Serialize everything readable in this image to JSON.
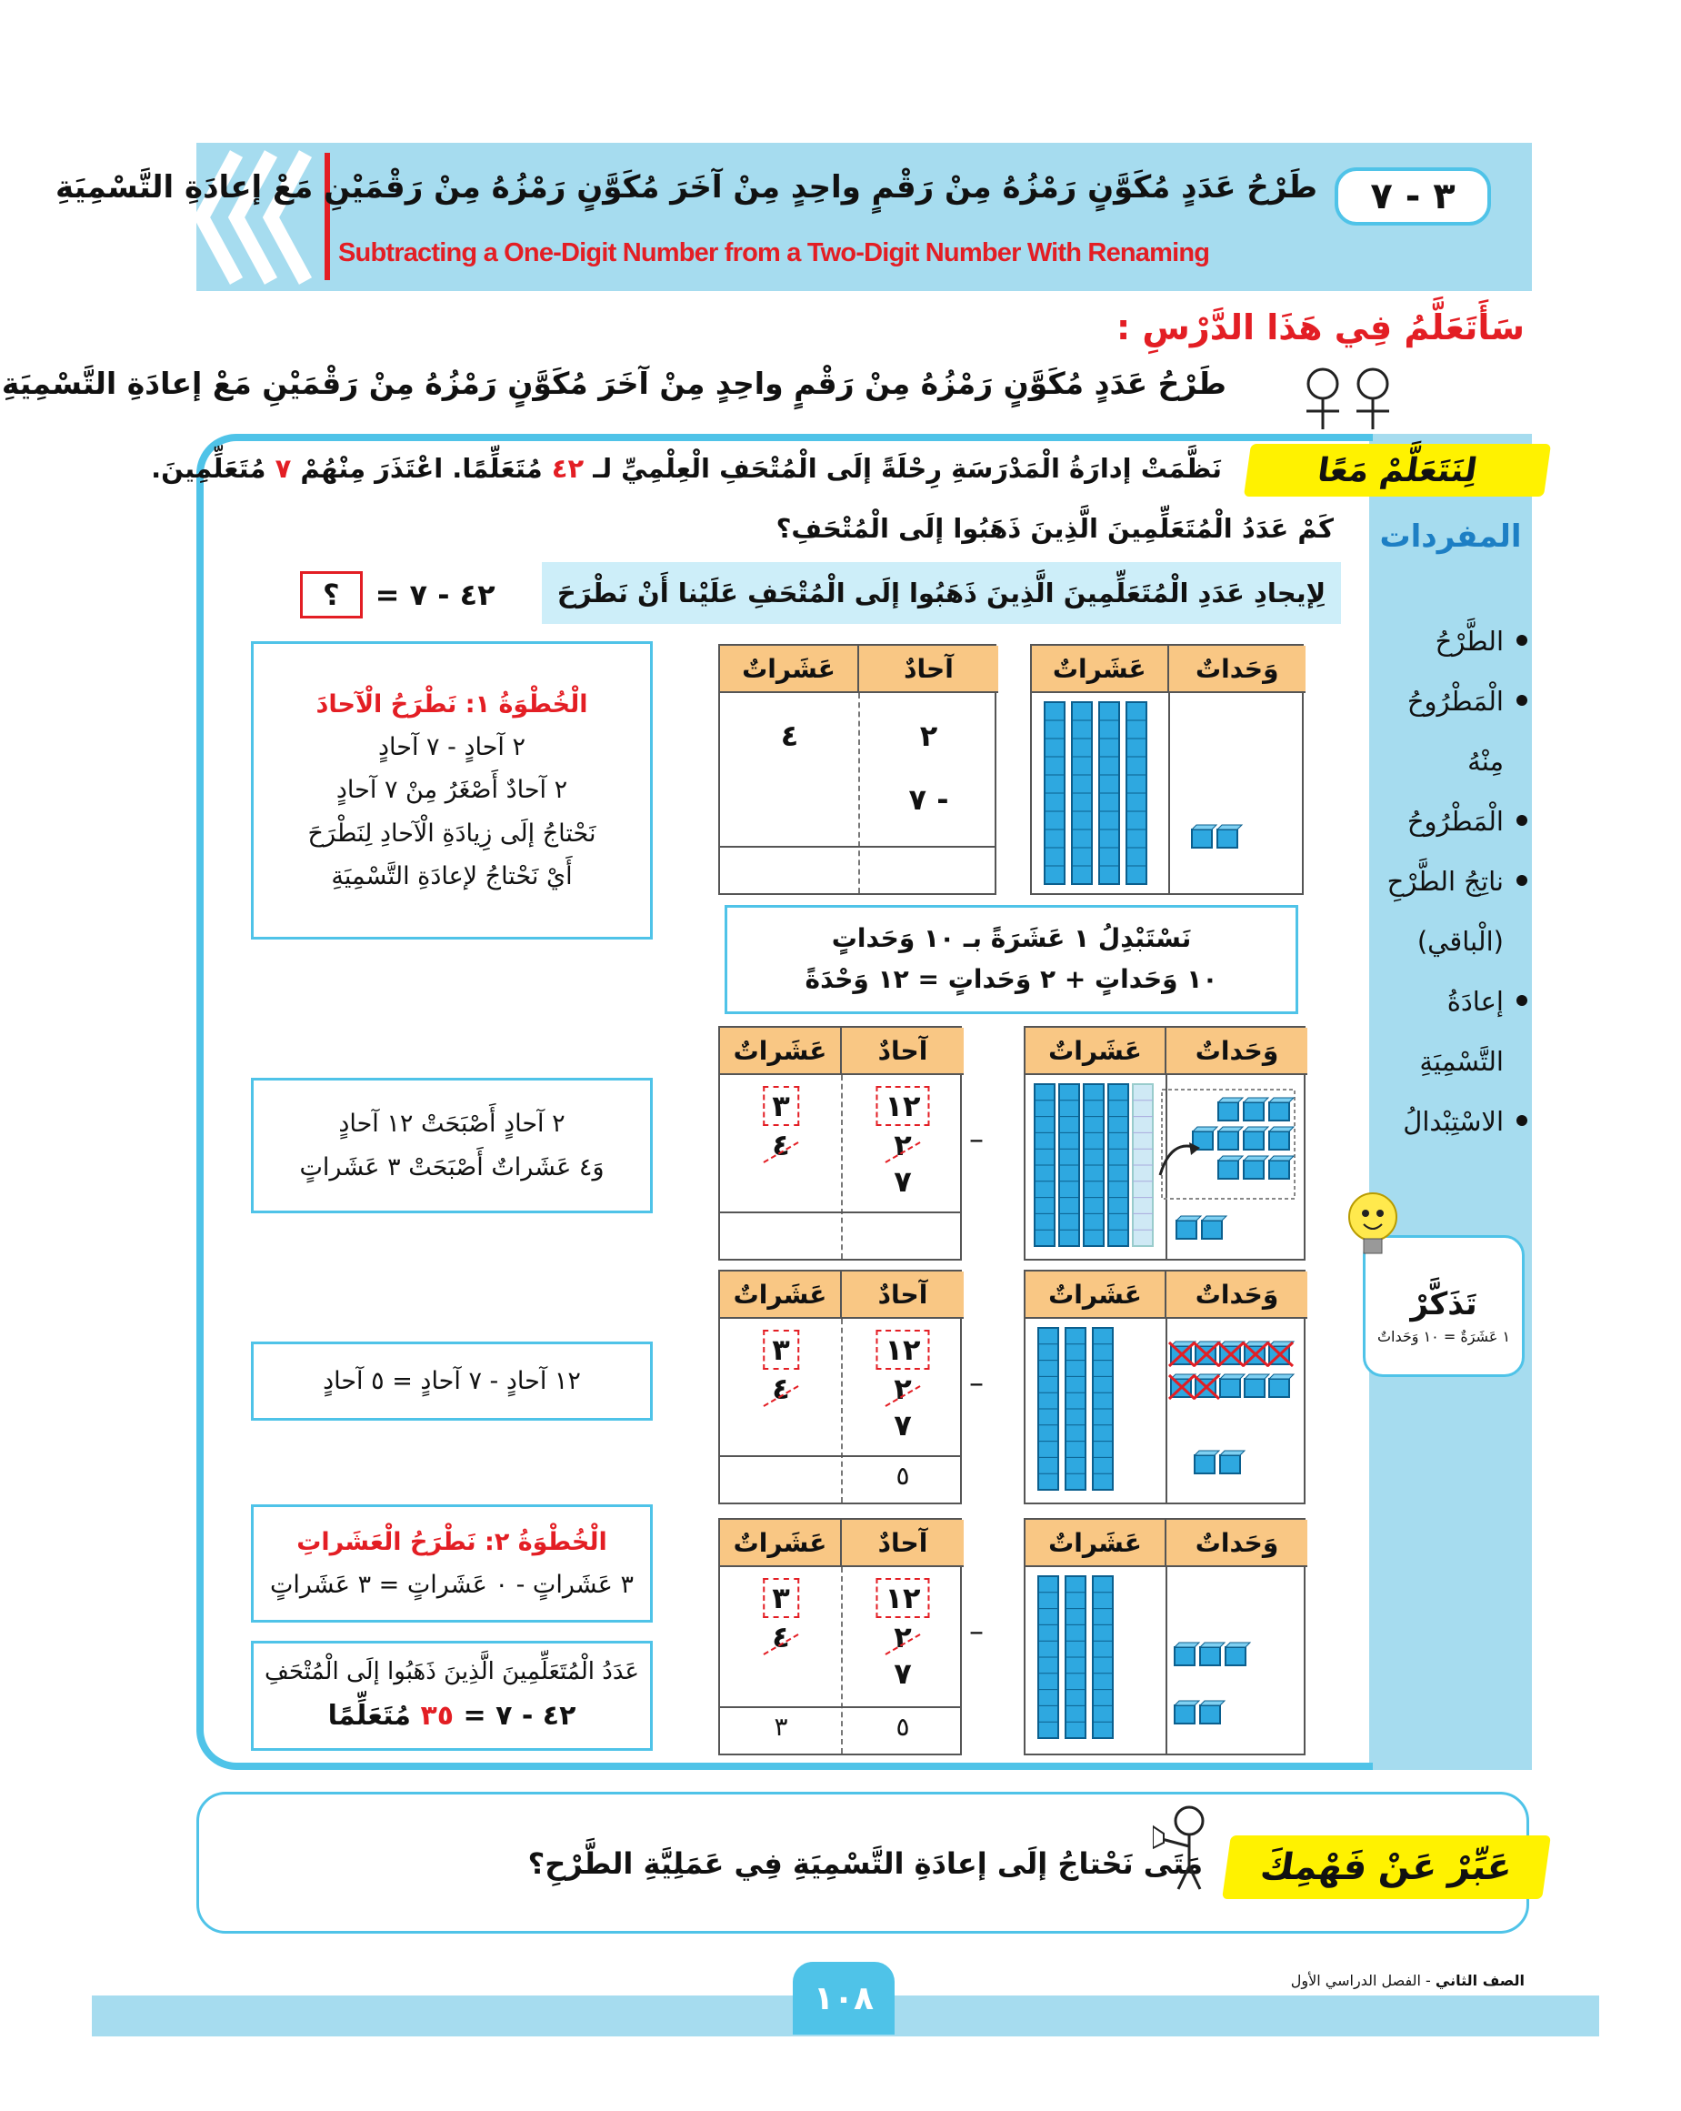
{
  "header": {
    "lesson_number": "٣ - ٧",
    "title_ar": "طَرْحُ عَدَدٍ مُكَوَّنٍ رَمْزُهُ مِنْ رَقْمٍ واحِدٍ مِنْ آخَرَ مُكَوَّنٍ رَمْزُهُ مِنْ رَقْمَيْنِ مَعْ إعادَةِ التَّسْمِيَةِ",
    "title_en": "Subtracting a One-Digit Number from a Two-Digit Number With Renaming"
  },
  "objective": {
    "heading": "سَأَتَعَلَّمُ فِي هَذَا الدَّرْسِ :",
    "text": "طَرْحُ عَدَدٍ مُكَوَّنٍ رَمْزُهُ مِنْ رَقْمٍ واحِدٍ مِنْ آخَرَ مُكَوَّنٍ رَمْزُهُ مِنْ رَقْمَيْنِ مَعْ إعادَةِ التَّسْمِيَةِ"
  },
  "learn_together": {
    "label": "لِنَتَعَلَّمْ مَعًا",
    "problem": [
      "نَظَّمَتْ إدارَةُ الْمَدْرَسَةِ رِحْلَةً إلَى الْمُتْحَفِ الْعِلْمِيِّ لـ",
      "٤٢",
      "مُتَعَلِّمًا. اعْتَذَرَ مِنْهُمْ",
      "٧",
      "مُتَعَلِّمِينَ."
    ],
    "question": "كَمْ عَدَدُ الْمُتَعَلِّمِينَ الَّذِينَ ذَهَبُوا إلَى الْمُتْحَفِ؟",
    "instruction": "لِإيجادِ عَدَدِ الْمُتَعَلِّمِينَ الَّذِينَ ذَهَبُوا إلَى الْمُتْحَفِ عَلَيْنا أَنْ نَطْرَحَ",
    "equation": [
      "٤٢ - ٧ =",
      "؟"
    ]
  },
  "table_headers": [
    "عَشَراتٌ",
    "آحادٌ"
  ],
  "figure_headers": [
    "عَشَراتٌ",
    "وَحَداتٌ"
  ],
  "rows": [
    {
      "heading": "الْخُطْوَةُ ١: نَطْرَحُ الْآحادَ",
      "explanation": [
        "٢ آحادٍ - ٧ آحادٍ",
        "٢ آحادٌ أَصْغَرُ مِنْ ٧ آحادٍ",
        "نَحْتاجُ إلَى زِيادَةِ الْآحادِ لِنَطْرَحَ",
        "أَيْ نَحْتاجُ لإعادَةِ التَّسْمِيَةِ"
      ],
      "tens": "٤",
      "ones": "٢",
      "subtrahend": "- ٧"
    },
    {
      "explanation": [
        "٢ آحادٍ أَصْبَحَتْ ١٢ آحادٍ",
        "وَ٤ عَشَراتٌ أَصْبَحَتْ ٣ عَشَراتٍ"
      ],
      "operator": "–",
      "tens_new": "٣",
      "tens": "٤",
      "ones_new": "١٢",
      "ones": "٢",
      "subtrahend": "٧"
    },
    {
      "explanation": [
        "١٢ آحادٍ - ٧ آحادٍ = ٥ آحادٍ"
      ],
      "operator": "–",
      "tens_new": "٣",
      "tens": "٤",
      "ones_new": "١٢",
      "ones": "٢",
      "subtrahend": "٧",
      "result_ones": "٥"
    },
    {
      "heading": "الْخُطْوَةُ ٢: نَطْرَحُ الْعَشَراتِ",
      "explanation": [
        "٣ عَشَراتٍ - ٠ عَشَراتٍ = ٣ عَشَراتٍ"
      ],
      "operator": "–",
      "tens_new": "٣",
      "tens": "٤",
      "ones_new": "١٢",
      "ones": "٢",
      "subtrahend": "٧",
      "result_ones": "٥",
      "result_tens": "٣"
    }
  ],
  "exchange": [
    "نَسْتَبْدِلُ ١ عَشَرَةً بـ ١٠ وَحَداتٍ",
    "١٠ وَحَداتٍ + ٢ وَحَداتٍ = ١٢ وَحْدَةً"
  ],
  "answer": {
    "text": "عَدَدُ الْمُتَعَلِّمِينَ الَّذِينَ ذَهَبُوا إلَى الْمُتْحَفِ",
    "equation": [
      "٤٢ - ٧ =",
      "٣٥",
      "مُتَعَلِّمًا"
    ]
  },
  "vocabulary": {
    "heading": "المفردات",
    "items": [
      "الطَّرْحُ",
      "الْمَطْرُوحُ مِنْهُ",
      "الْمَطْرُوحُ",
      "ناتِجُ الطَّرْحِ (الْباقي)",
      "إعادَةُ التَّسْمِيَةِ",
      "الاسْتِبْدالُ"
    ]
  },
  "remember": {
    "heading": "تَذَكَّرْ",
    "text": "١ عَشَرَةٌ = ١٠ وَحَداتٌ"
  },
  "express": {
    "label": "عَبِّرْ عَنْ فَهْمِكَ",
    "question": "مَتَى نَحْتاجُ إلَى إعادَةِ التَّسْمِيَةِ فِي عَمَلِيَّةِ الطَّرْحِ؟"
  },
  "footer": {
    "page_number": "١٠٨",
    "grade": "الصف الثاني",
    "term": "- الفصل الدراسي الأول"
  }
}
